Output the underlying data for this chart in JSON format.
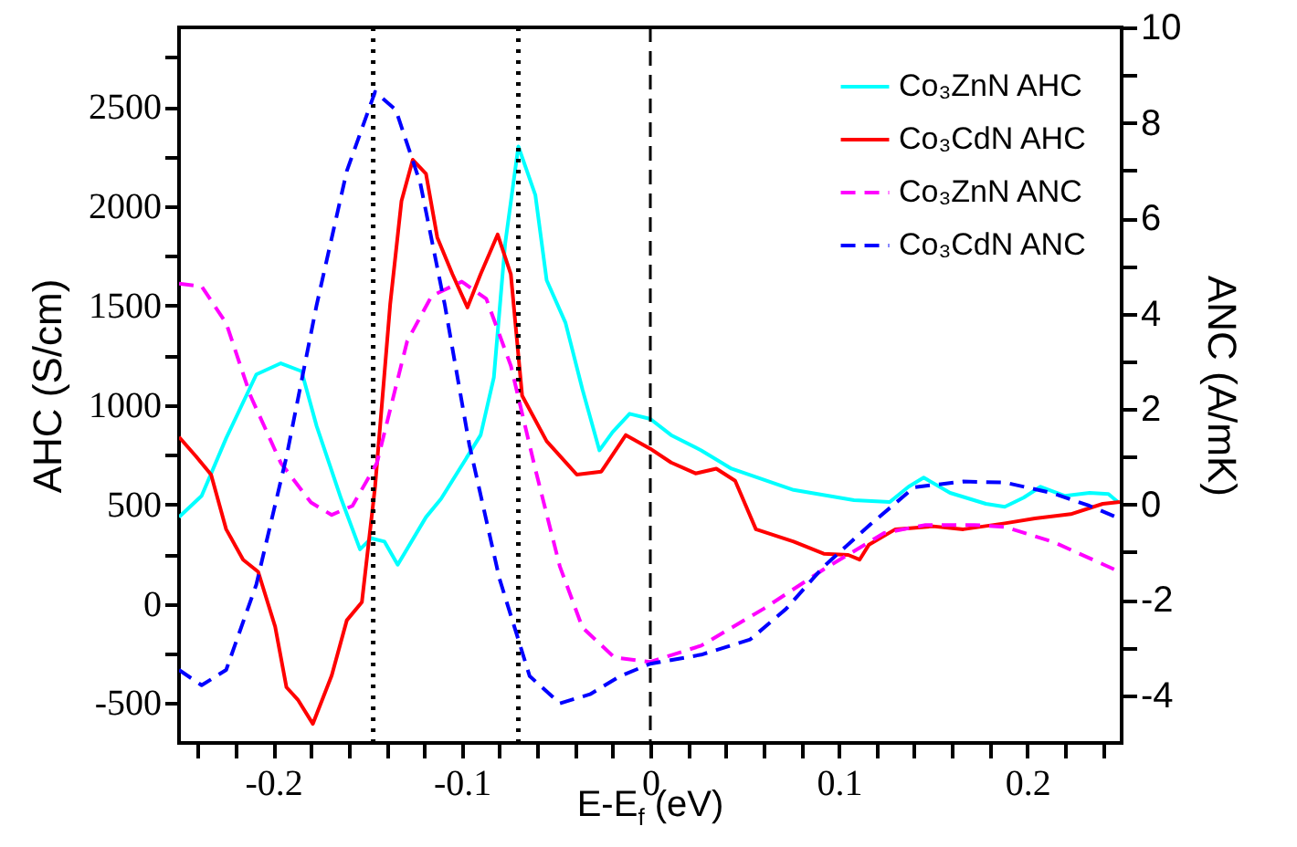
{
  "chart_data": {
    "type": "line",
    "xlabel": "E-E$_{f}$ (eV)",
    "ylabel": "AHC (S/cm)",
    "y2label": "ANC (A/mK)",
    "xlim": [
      -0.25,
      0.25
    ],
    "xticks": [
      {
        "value": -0.24,
        "label": null
      },
      {
        "value": -0.22,
        "label": null
      },
      -0.2,
      {
        "value": -0.18,
        "label": null
      },
      {
        "value": -0.16,
        "label": null
      },
      {
        "value": -0.14,
        "label": null
      },
      {
        "value": -0.12,
        "label": null
      },
      -0.1,
      {
        "value": -0.08,
        "label": null
      },
      {
        "value": -0.06,
        "label": null
      },
      {
        "value": -0.04,
        "label": null
      },
      {
        "value": -0.02,
        "label": null
      },
      0,
      {
        "value": 0.02,
        "label": null
      },
      {
        "value": 0.04,
        "label": null
      },
      {
        "value": 0.06,
        "label": null
      },
      {
        "value": 0.08,
        "label": null
      },
      0.1,
      {
        "value": 0.12,
        "label": null
      },
      {
        "value": 0.14,
        "label": null
      },
      {
        "value": 0.16,
        "label": null
      },
      {
        "value": 0.18,
        "label": null
      },
      0.2,
      {
        "value": 0.22,
        "label": null
      },
      {
        "value": 0.24,
        "label": null
      }
    ],
    "ylim": [
      -700,
      2900
    ],
    "yticks": [
      -500,
      {
        "value": -250,
        "label": null
      },
      0,
      {
        "value": 250,
        "label": null
      },
      500,
      {
        "value": 750,
        "label": null
      },
      1000,
      {
        "value": 1250,
        "label": null
      },
      1500,
      {
        "value": 1750,
        "label": null
      },
      2000,
      {
        "value": 2250,
        "label": null
      },
      2500,
      {
        "value": 2750,
        "label": null
      }
    ],
    "y2lim": [
      -5,
      10
    ],
    "y2ticks": [
      -4,
      {
        "value": -3,
        "label": null
      },
      -2,
      {
        "value": -1,
        "label": null
      },
      0,
      {
        "value": 1,
        "label": null
      },
      2,
      {
        "value": 3,
        "label": null
      },
      4,
      {
        "value": 5,
        "label": null
      },
      6,
      {
        "value": 7,
        "label": null
      },
      8,
      {
        "value": 9,
        "label": null
      },
      10
    ],
    "grid": false,
    "legend": "top right",
    "marker": "none",
    "ref_lines": [
      {
        "axis": "x",
        "value": -0.147,
        "color": "#000000",
        "line_style": "dotted"
      },
      {
        "axis": "x",
        "value": -0.07,
        "color": "#000000",
        "line_style": "dotted"
      },
      {
        "axis": "x",
        "value": 0,
        "color": "#000000",
        "line_style": "dashed"
      }
    ],
    "series": [
      {
        "name": "Co₃ZnN AHC",
        "color": "#00ffff",
        "line_style": "solid",
        "x": [
          -0.25,
          -0.238,
          -0.225,
          -0.209,
          -0.196,
          -0.185,
          -0.177,
          -0.164,
          -0.154,
          -0.148,
          -0.141,
          -0.134,
          -0.119,
          -0.111,
          -0.099,
          -0.09,
          -0.083,
          -0.077,
          -0.07,
          -0.061,
          -0.055,
          -0.045,
          -0.036,
          -0.027,
          -0.02,
          -0.011,
          0,
          0.011,
          0.027,
          0.043,
          0.076,
          0.108,
          0.127,
          0.137,
          0.145,
          0.159,
          0.178,
          0.188,
          0.198,
          0.207,
          0.22,
          0.233,
          0.243,
          0.248
        ],
        "values": [
          436,
          543,
          833,
          1154,
          1210,
          1170,
          894,
          528,
          274,
          330,
          313,
          197,
          436,
          528,
          711,
          849,
          1139,
          1812,
          2301,
          2057,
          1628,
          1414,
          1078,
          772,
          864,
          956,
          930,
          849,
          772,
          680,
          573,
          521,
          512,
          589,
          635,
          558,
          503,
          488,
          534,
          589,
          543,
          558,
          552,
          512
        ]
      },
      {
        "name": "Co₃CdN AHC",
        "color": "#ff0000",
        "line_style": "solid",
        "x": [
          -0.25,
          -0.241,
          -0.233,
          -0.225,
          -0.216,
          -0.208,
          -0.199,
          -0.193,
          -0.187,
          -0.179,
          -0.169,
          -0.161,
          -0.153,
          -0.146,
          -0.138,
          -0.132,
          -0.126,
          -0.119,
          -0.113,
          -0.105,
          -0.097,
          -0.09,
          -0.081,
          -0.074,
          -0.068,
          -0.055,
          -0.039,
          -0.026,
          -0.013,
          0,
          0.011,
          0.024,
          0.035,
          0.045,
          0.056,
          0.076,
          0.092,
          0.105,
          0.111,
          0.116,
          0.13,
          0.15,
          0.166,
          0.188,
          0.204,
          0.223,
          0.24,
          0.249
        ],
        "values": [
          839,
          742,
          650,
          375,
          222,
          161,
          -115,
          -420,
          -482,
          -604,
          -360,
          -83,
          8,
          589,
          1506,
          2026,
          2234,
          2164,
          1843,
          1659,
          1491,
          1659,
          1858,
          1659,
          1047,
          818,
          650,
          665,
          849,
          780,
          711,
          656,
          680,
          619,
          375,
          313,
          252,
          246,
          222,
          298,
          375,
          390,
          375,
          405,
          430,
          451,
          503,
          512
        ]
      },
      {
        "name": "Co₃ZnN ANC",
        "color": "#ff00ff",
        "line_style": "dashed",
        "axis": "y2",
        "x": [
          -0.25,
          -0.238,
          -0.225,
          -0.212,
          -0.196,
          -0.18,
          -0.169,
          -0.158,
          -0.145,
          -0.129,
          -0.116,
          -0.1,
          -0.087,
          -0.074,
          -0.061,
          -0.048,
          -0.036,
          -0.019,
          0,
          0.027,
          0.06,
          0.092,
          0.124,
          0.146,
          0.172,
          0.188,
          0.214,
          0.246
        ],
        "values": [
          4.63,
          4.57,
          3.8,
          2.27,
          0.87,
          0.04,
          -0.22,
          -0.03,
          0.87,
          3.42,
          4.37,
          4.67,
          4.31,
          2.91,
          0.74,
          -1.3,
          -2.58,
          -3.21,
          -3.3,
          -2.96,
          -2.19,
          -1.36,
          -0.6,
          -0.43,
          -0.43,
          -0.47,
          -0.79,
          -1.36
        ]
      },
      {
        "name": "Co₃CdN ANC",
        "color": "#0000ff",
        "line_style": "dashed",
        "axis": "y2",
        "x": [
          -0.25,
          -0.238,
          -0.225,
          -0.209,
          -0.193,
          -0.177,
          -0.161,
          -0.146,
          -0.135,
          -0.122,
          -0.109,
          -0.096,
          -0.08,
          -0.064,
          -0.048,
          -0.032,
          -0.016,
          0,
          0.027,
          0.053,
          0.072,
          0.092,
          0.117,
          0.14,
          0.166,
          0.188,
          0.214,
          0.233,
          0.248
        ],
        "values": [
          -3.47,
          -3.79,
          -3.47,
          -1.68,
          1.0,
          4.18,
          6.99,
          8.65,
          8.27,
          6.73,
          4.18,
          1.25,
          -1.56,
          -3.6,
          -4.17,
          -3.98,
          -3.6,
          -3.34,
          -3.15,
          -2.83,
          -2.19,
          -1.3,
          -0.41,
          0.36,
          0.48,
          0.46,
          0.23,
          -0.03,
          -0.28
        ]
      }
    ]
  }
}
